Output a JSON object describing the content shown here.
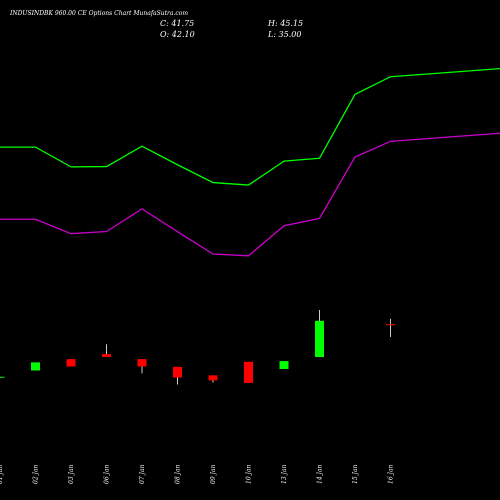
{
  "header": {
    "title": "INDUSINDBK 960.00 CE Options  Chart MunafaSutra.com",
    "open_label": "O: 42.10",
    "close_label": "C: 41.75",
    "high_label": "H: 45.15",
    "low_label": "L: 35.00"
  },
  "colors": {
    "background": "#000000",
    "up": "#00ff00",
    "down": "#ff0000",
    "wick": "#ffffff",
    "upper_band": "#00ff00",
    "lower_band": "#cc00cc"
  },
  "chart_data": {
    "type": "candlestick",
    "categories": [
      "01 Jan",
      "02 Jan",
      "03 Jan",
      "06 Jan",
      "07 Jan",
      "08 Jan",
      "09 Jan",
      "10 Jan",
      "13 Jan",
      "14 Jan",
      "15 Jan",
      "16 Jan"
    ],
    "candles": [
      {
        "open": 12.7,
        "high": 12.9,
        "low": 12.5,
        "close": 12.9
      },
      {
        "open": 16.4,
        "high": 20.9,
        "low": 16.4,
        "close": 20.9
      },
      {
        "open": 22.7,
        "high": 22.7,
        "low": 18.6,
        "close": 18.6
      },
      {
        "open": 25.5,
        "high": 31.0,
        "low": 23.9,
        "close": 23.9
      },
      {
        "open": 22.7,
        "high": 22.7,
        "low": 14.8,
        "close": 18.6
      },
      {
        "open": 18.4,
        "high": 18.4,
        "low": 8.6,
        "close": 12.5
      },
      {
        "open": 13.7,
        "high": 13.7,
        "low": 9.7,
        "close": 10.9
      },
      {
        "open": 21.2,
        "high": 21.2,
        "low": 9.5,
        "close": 9.5
      },
      {
        "open": 17.2,
        "high": 21.6,
        "low": 17.2,
        "close": 21.6
      },
      {
        "open": 23.9,
        "high": 50.0,
        "low": 23.9,
        "close": 44.0
      },
      {
        "open": 42.1,
        "high": 45.15,
        "low": 35.0,
        "close": 41.75
      }
    ],
    "candle_categories": [
      "01 Jan",
      "02 Jan",
      "03 Jan",
      "06 Jan",
      "07 Jan",
      "08 Jan",
      "09 Jan",
      "10 Jan",
      "13 Jan",
      "14 Jan",
      "16 Jan"
    ],
    "series": [
      {
        "values": [
          140.5,
          140.5,
          129.5,
          129.7,
          141.0,
          130.7,
          120.8,
          119.4,
          132.7,
          134.3,
          169.8,
          179.6
        ]
      },
      {
        "values": [
          100.4,
          100.4,
          92.4,
          93.6,
          106.2,
          93.5,
          81.1,
          80.1,
          96.8,
          100.9,
          135.0,
          143.7
        ]
      }
    ]
  }
}
